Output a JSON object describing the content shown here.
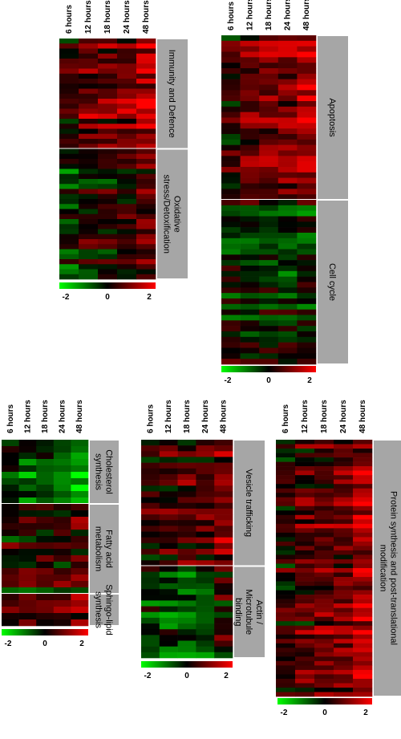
{
  "palette": {
    "low": "#00ff00",
    "mid": "#000000",
    "high": "#ff0000",
    "label_box": "#a6a6a6",
    "divider": "#ffffff"
  },
  "chart_data": [
    {
      "type": "heatmap",
      "columns": [
        "6 hours",
        "12 hours",
        "18 hours",
        "24 hours",
        "48 hours"
      ],
      "scale": {
        "min": -2,
        "max": 2,
        "ticks": [
          "-2",
          "0",
          "2"
        ]
      },
      "groups": [
        {
          "label": "Immunity and Defence",
          "rows": 22,
          "profile": [
            0.3,
            0.8,
            0.9,
            1.0,
            1.4
          ]
        },
        {
          "label": "Oxidative stress/Detoxification",
          "rows": 26,
          "profile": [
            -0.4,
            0.0,
            0.1,
            0.3,
            0.6
          ]
        }
      ]
    },
    {
      "type": "heatmap",
      "columns": [
        "6 hours",
        "12 hours",
        "18 hours",
        "24 hours",
        "48 hours"
      ],
      "scale": {
        "min": -2,
        "max": 2,
        "ticks": [
          "-2",
          "0",
          "2"
        ]
      },
      "groups": [
        {
          "label": "Apoptosis",
          "rows": 30,
          "profile": [
            0.2,
            0.7,
            0.8,
            0.8,
            1.2
          ]
        },
        {
          "label": "Cell cycle",
          "rows": 30,
          "profile": [
            -0.1,
            -0.2,
            -0.3,
            -0.4,
            -0.3
          ]
        }
      ]
    },
    {
      "type": "heatmap",
      "columns": [
        "6 hours",
        "12 hours",
        "18 hours",
        "24 hours",
        "48 hours"
      ],
      "scale": {
        "min": -2,
        "max": 2,
        "ticks": [
          "-2",
          "0",
          "2"
        ]
      },
      "groups": [
        {
          "label": "Cholesterol synthesis",
          "rows": 10,
          "profile": [
            -0.3,
            -0.7,
            -0.6,
            -1.0,
            -1.4
          ]
        },
        {
          "label": "Fatty acid metabolism",
          "rows": 14,
          "profile": [
            0.1,
            0.2,
            0.3,
            0.4,
            0.5
          ]
        },
        {
          "label": "Sphingo-lipid synthesis",
          "rows": 5,
          "profile": [
            0.2,
            0.3,
            0.2,
            0.5,
            0.7
          ]
        }
      ]
    },
    {
      "type": "heatmap",
      "columns": [
        "6 hours",
        "12 hours",
        "18 hours",
        "24 hours",
        "48 hours"
      ],
      "scale": {
        "min": -2,
        "max": 2,
        "ticks": [
          "-2",
          "0",
          "2"
        ]
      },
      "groups": [
        {
          "label": "Vesicle trafficking",
          "rows": 22,
          "profile": [
            0.2,
            0.3,
            0.5,
            0.6,
            1.0
          ]
        },
        {
          "label": "Actin / Microtubule binding",
          "rows": 16,
          "profile": [
            -0.4,
            -0.5,
            -0.6,
            -0.6,
            0.2
          ]
        }
      ]
    },
    {
      "type": "heatmap",
      "columns": [
        "6 hours",
        "12 hours",
        "18 hours",
        "24 hours",
        "48 hours"
      ],
      "scale": {
        "min": -2,
        "max": 2,
        "ticks": [
          "-2",
          "0",
          "2"
        ]
      },
      "groups": [
        {
          "label": "Protein synthesis and post-translational modification",
          "rows": 58,
          "profile": [
            0.2,
            0.5,
            0.7,
            0.8,
            1.3
          ]
        }
      ]
    }
  ]
}
